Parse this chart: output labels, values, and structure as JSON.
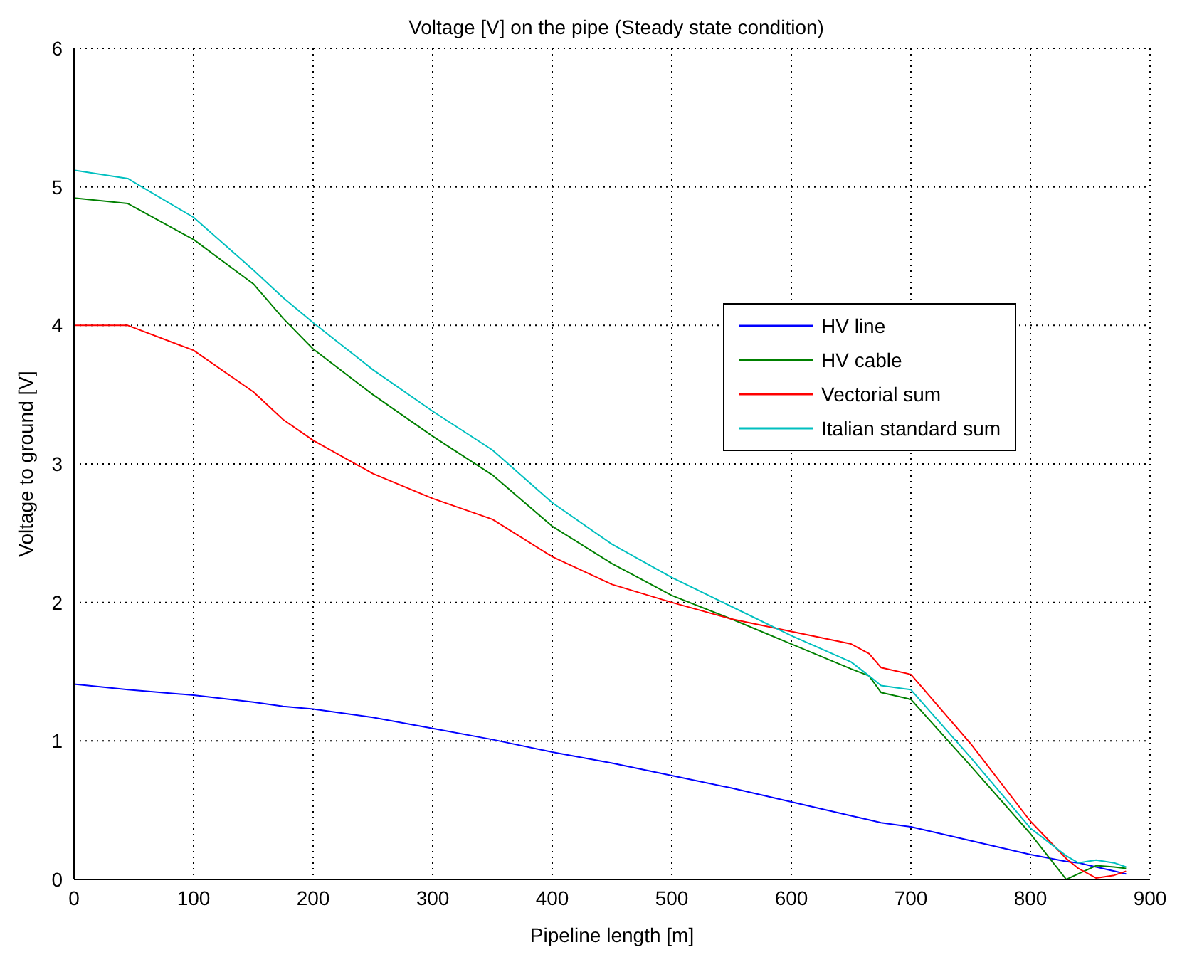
{
  "chart_data": {
    "type": "line",
    "title": "Voltage [V] on the pipe (Steady state condition)",
    "xlabel": "Pipeline length [m]",
    "ylabel": "Voltage to ground [V]",
    "x": [
      0,
      45,
      100,
      150,
      175,
      200,
      250,
      300,
      350,
      400,
      450,
      500,
      550,
      600,
      650,
      665,
      675,
      700,
      750,
      800,
      830,
      840,
      855,
      870,
      880
    ],
    "series": [
      {
        "name": "HV line",
        "color": "#0000ff",
        "values": [
          1.41,
          1.37,
          1.33,
          1.28,
          1.25,
          1.23,
          1.17,
          1.09,
          1.01,
          0.92,
          0.84,
          0.75,
          0.66,
          0.56,
          0.46,
          0.43,
          0.41,
          0.38,
          0.28,
          0.18,
          0.13,
          0.12,
          0.09,
          0.06,
          0.04
        ]
      },
      {
        "name": "HV cable",
        "color": "#008000",
        "values": [
          4.92,
          4.88,
          4.62,
          4.3,
          4.05,
          3.83,
          3.5,
          3.2,
          2.92,
          2.55,
          2.28,
          2.05,
          1.88,
          1.7,
          1.52,
          1.47,
          1.35,
          1.3,
          0.82,
          0.33,
          0.0,
          0.04,
          0.1,
          0.09,
          0.08
        ]
      },
      {
        "name": "Vectorial sum",
        "color": "#ff0000",
        "values": [
          4.0,
          4.0,
          3.82,
          3.52,
          3.32,
          3.17,
          2.93,
          2.75,
          2.6,
          2.33,
          2.13,
          2.0,
          1.88,
          1.79,
          1.7,
          1.63,
          1.53,
          1.48,
          0.98,
          0.42,
          0.15,
          0.08,
          0.01,
          0.03,
          0.06
        ]
      },
      {
        "name": "Italian standard sum",
        "color": "#00bfbf",
        "values": [
          5.12,
          5.06,
          4.78,
          4.4,
          4.2,
          4.02,
          3.68,
          3.38,
          3.1,
          2.72,
          2.42,
          2.18,
          1.97,
          1.76,
          1.57,
          1.47,
          1.4,
          1.37,
          0.88,
          0.37,
          0.17,
          0.12,
          0.14,
          0.12,
          0.09
        ]
      }
    ],
    "xlim": [
      0,
      900
    ],
    "xticks": [
      0,
      100,
      200,
      300,
      400,
      500,
      600,
      700,
      800,
      900
    ],
    "ylim": [
      0,
      6
    ],
    "yticks": [
      0,
      1,
      2,
      3,
      4,
      5,
      6
    ],
    "grid": true,
    "legend": "top right",
    "marker": "none",
    "line_style": "solid"
  }
}
